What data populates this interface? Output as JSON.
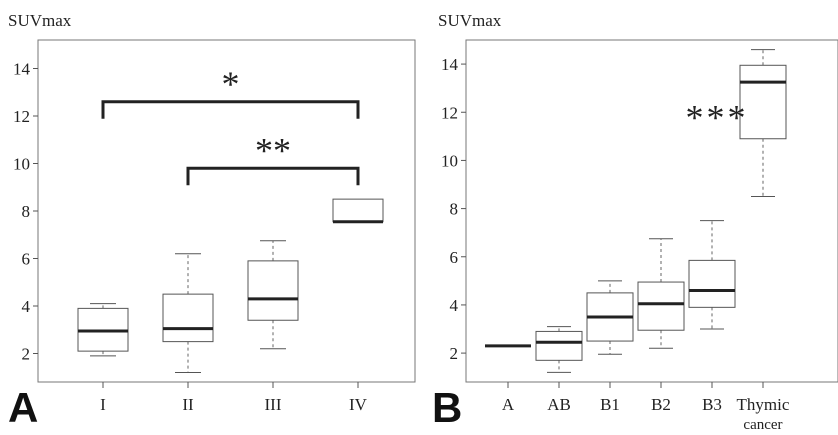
{
  "chart_data": [
    {
      "type": "box",
      "panel": "A",
      "ylabel": "SUVmax",
      "ylim": [
        0.8,
        15.2
      ],
      "yticks": [
        2,
        4,
        6,
        8,
        10,
        12,
        14
      ],
      "categories": [
        "I",
        "II",
        "III",
        "IV"
      ],
      "boxes": [
        {
          "category": "I",
          "min": 1.9,
          "q1": 2.1,
          "median": 2.95,
          "q3": 3.9,
          "max": 4.1
        },
        {
          "category": "II",
          "min": 1.2,
          "q1": 2.5,
          "median": 3.05,
          "q3": 4.5,
          "max": 6.2
        },
        {
          "category": "III",
          "min": 2.2,
          "q1": 3.4,
          "median": 4.3,
          "q3": 5.9,
          "max": 6.75
        },
        {
          "category": "IV",
          "min": 7.55,
          "q1": 7.55,
          "median": 7.55,
          "q3": 8.5,
          "max": 8.5
        }
      ],
      "annotations": [
        {
          "label": "*",
          "from": "I",
          "to": "IV",
          "y": 12.6
        },
        {
          "label": "**",
          "from": "II",
          "to": "IV",
          "y": 9.8
        }
      ],
      "grid": false,
      "legend": "none"
    },
    {
      "type": "box",
      "panel": "B",
      "ylabel": "SUVmax",
      "ylim": [
        0.8,
        15.0
      ],
      "yticks": [
        2,
        4,
        6,
        8,
        10,
        12,
        14
      ],
      "categories": [
        "A",
        "AB",
        "B1",
        "B2",
        "B3",
        "Thymic cancer"
      ],
      "category_lines": [
        [
          "A"
        ],
        [
          "AB"
        ],
        [
          "B1"
        ],
        [
          "B2"
        ],
        [
          "B3"
        ],
        [
          "Thymic",
          "cancer"
        ]
      ],
      "boxes": [
        {
          "category": "A",
          "min": 2.3,
          "q1": 2.3,
          "median": 2.3,
          "q3": 2.3,
          "max": 2.3
        },
        {
          "category": "AB",
          "min": 1.2,
          "q1": 1.7,
          "median": 2.45,
          "q3": 2.9,
          "max": 3.1
        },
        {
          "category": "B1",
          "min": 1.95,
          "q1": 2.5,
          "median": 3.5,
          "q3": 4.5,
          "max": 5.0
        },
        {
          "category": "B2",
          "min": 2.2,
          "q1": 2.95,
          "median": 4.05,
          "q3": 4.95,
          "max": 6.75
        },
        {
          "category": "B3",
          "min": 3.0,
          "q1": 3.9,
          "median": 4.6,
          "q3": 5.85,
          "max": 7.5
        },
        {
          "category": "Thymic cancer",
          "min": 8.5,
          "q1": 10.9,
          "median": 13.25,
          "q3": 13.95,
          "max": 14.6
        }
      ],
      "annotations": [
        {
          "label": "***",
          "at": "Thymic cancer",
          "y": 11.7
        }
      ],
      "grid": false,
      "legend": "none"
    }
  ]
}
